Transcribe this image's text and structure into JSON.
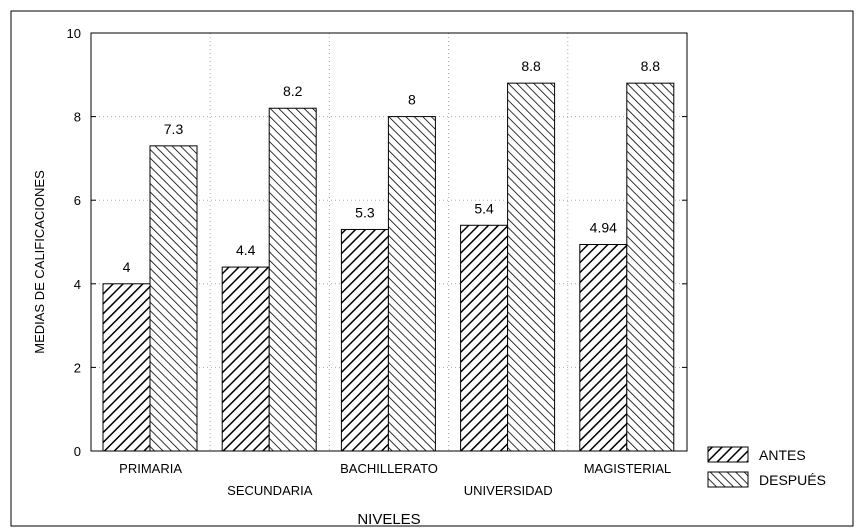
{
  "chart_data": {
    "type": "bar",
    "categories": [
      "PRIMARIA",
      "SECUNDARIA",
      "BACHILLERATO",
      "UNIVERSIDAD",
      "MAGISTERIAL"
    ],
    "series": [
      {
        "name": "ANTES",
        "values": [
          4,
          4.4,
          5.3,
          5.4,
          4.94
        ],
        "labels": [
          "4",
          "4.4",
          "5.3",
          "5.4",
          "4.94"
        ]
      },
      {
        "name": "DESPUÉS",
        "values": [
          7.3,
          8.2,
          8,
          8.8,
          8.8
        ],
        "labels": [
          "7.3",
          "8.2",
          "8",
          "8.8",
          "8.8"
        ]
      }
    ],
    "xlabel": "NIVELES",
    "ylabel": "MEDIAS DE CALIFICACIONES",
    "ylim": [
      0,
      10
    ],
    "yticks": [
      0,
      2,
      4,
      6,
      8,
      10
    ],
    "grid": true,
    "legend": "bottom-right",
    "colors": {
      "bar_fill": "#ffffff",
      "hatch": "#000000",
      "frame": "#000000",
      "grid": "#aaaaaa"
    }
  }
}
